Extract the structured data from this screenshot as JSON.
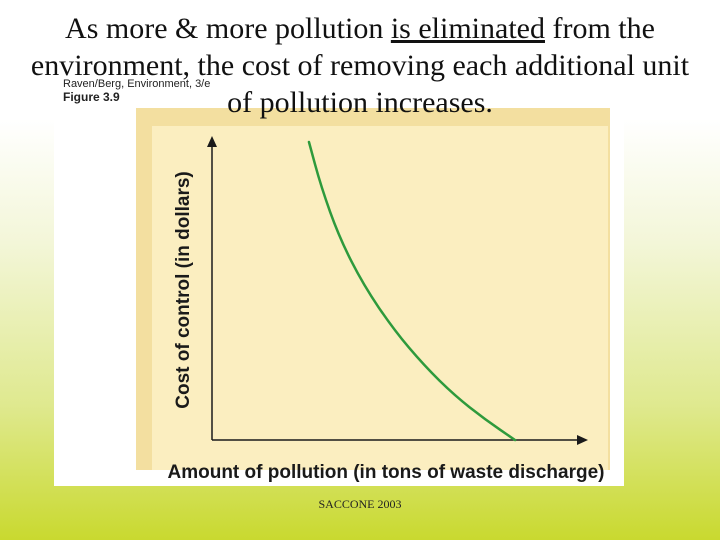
{
  "slide": {
    "title_prefix": "As more & more pollution ",
    "title_underlined": "is eliminated",
    "title_suffix": " from the environment, the cost of removing each additional unit of pollution increases.",
    "figure_credit": "Raven/Berg, Environment, 3/e",
    "figure_number": "Figure 3.9",
    "footer": "SACCONE 2003"
  },
  "colors": {
    "plot_background": "#fbeec0",
    "plot_frame": "#f3dfa0",
    "curve": "#2e9a3c",
    "axis": "#1a1a1a"
  },
  "chart_data": {
    "type": "line",
    "title": "",
    "xlabel": "Amount of pollution (in tons of waste discharge)",
    "ylabel": "Cost of control (in dollars)",
    "x_ticks": "none",
    "y_ticks": "none",
    "grid": false,
    "legend": "none",
    "series": [
      {
        "x": [
          0.32,
          0.36,
          0.42,
          0.5,
          0.6,
          0.7,
          0.8,
          0.9,
          1.0
        ],
        "y": [
          1.0,
          0.85,
          0.68,
          0.52,
          0.37,
          0.25,
          0.15,
          0.07,
          0.0
        ]
      }
    ]
  }
}
